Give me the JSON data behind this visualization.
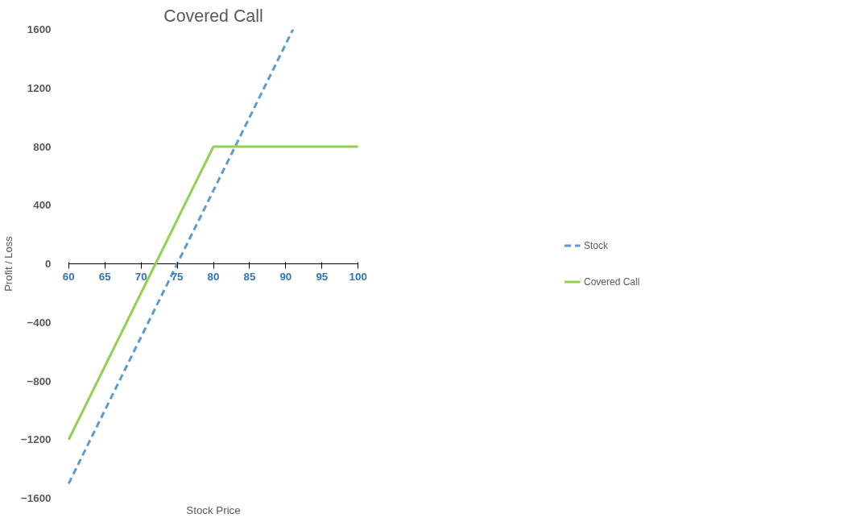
{
  "chart_data": {
    "type": "line",
    "title": "Covered Call",
    "xlabel": "Stock Price",
    "ylabel": "Profit / Loss",
    "xlim": [
      60,
      100
    ],
    "xticks": [
      60,
      65,
      70,
      75,
      80,
      85,
      90,
      95,
      100
    ],
    "ylim": [
      -1600,
      1600
    ],
    "yticks": [
      -1600,
      -1200,
      -800,
      -400,
      0,
      400,
      800,
      1200,
      1600
    ],
    "grid": false,
    "legend": "right",
    "marker": "none",
    "series": [
      {
        "name": "Stock",
        "color": "#5b9bd5",
        "line_style": "dashed",
        "x": [
          60,
          91
        ],
        "values": [
          -1500,
          1600
        ]
      },
      {
        "name": "Covered Call",
        "color": "#92d050",
        "line_style": "solid",
        "x": [
          60,
          72,
          80,
          100
        ],
        "values": [
          -1200,
          0,
          800,
          800
        ]
      }
    ]
  }
}
